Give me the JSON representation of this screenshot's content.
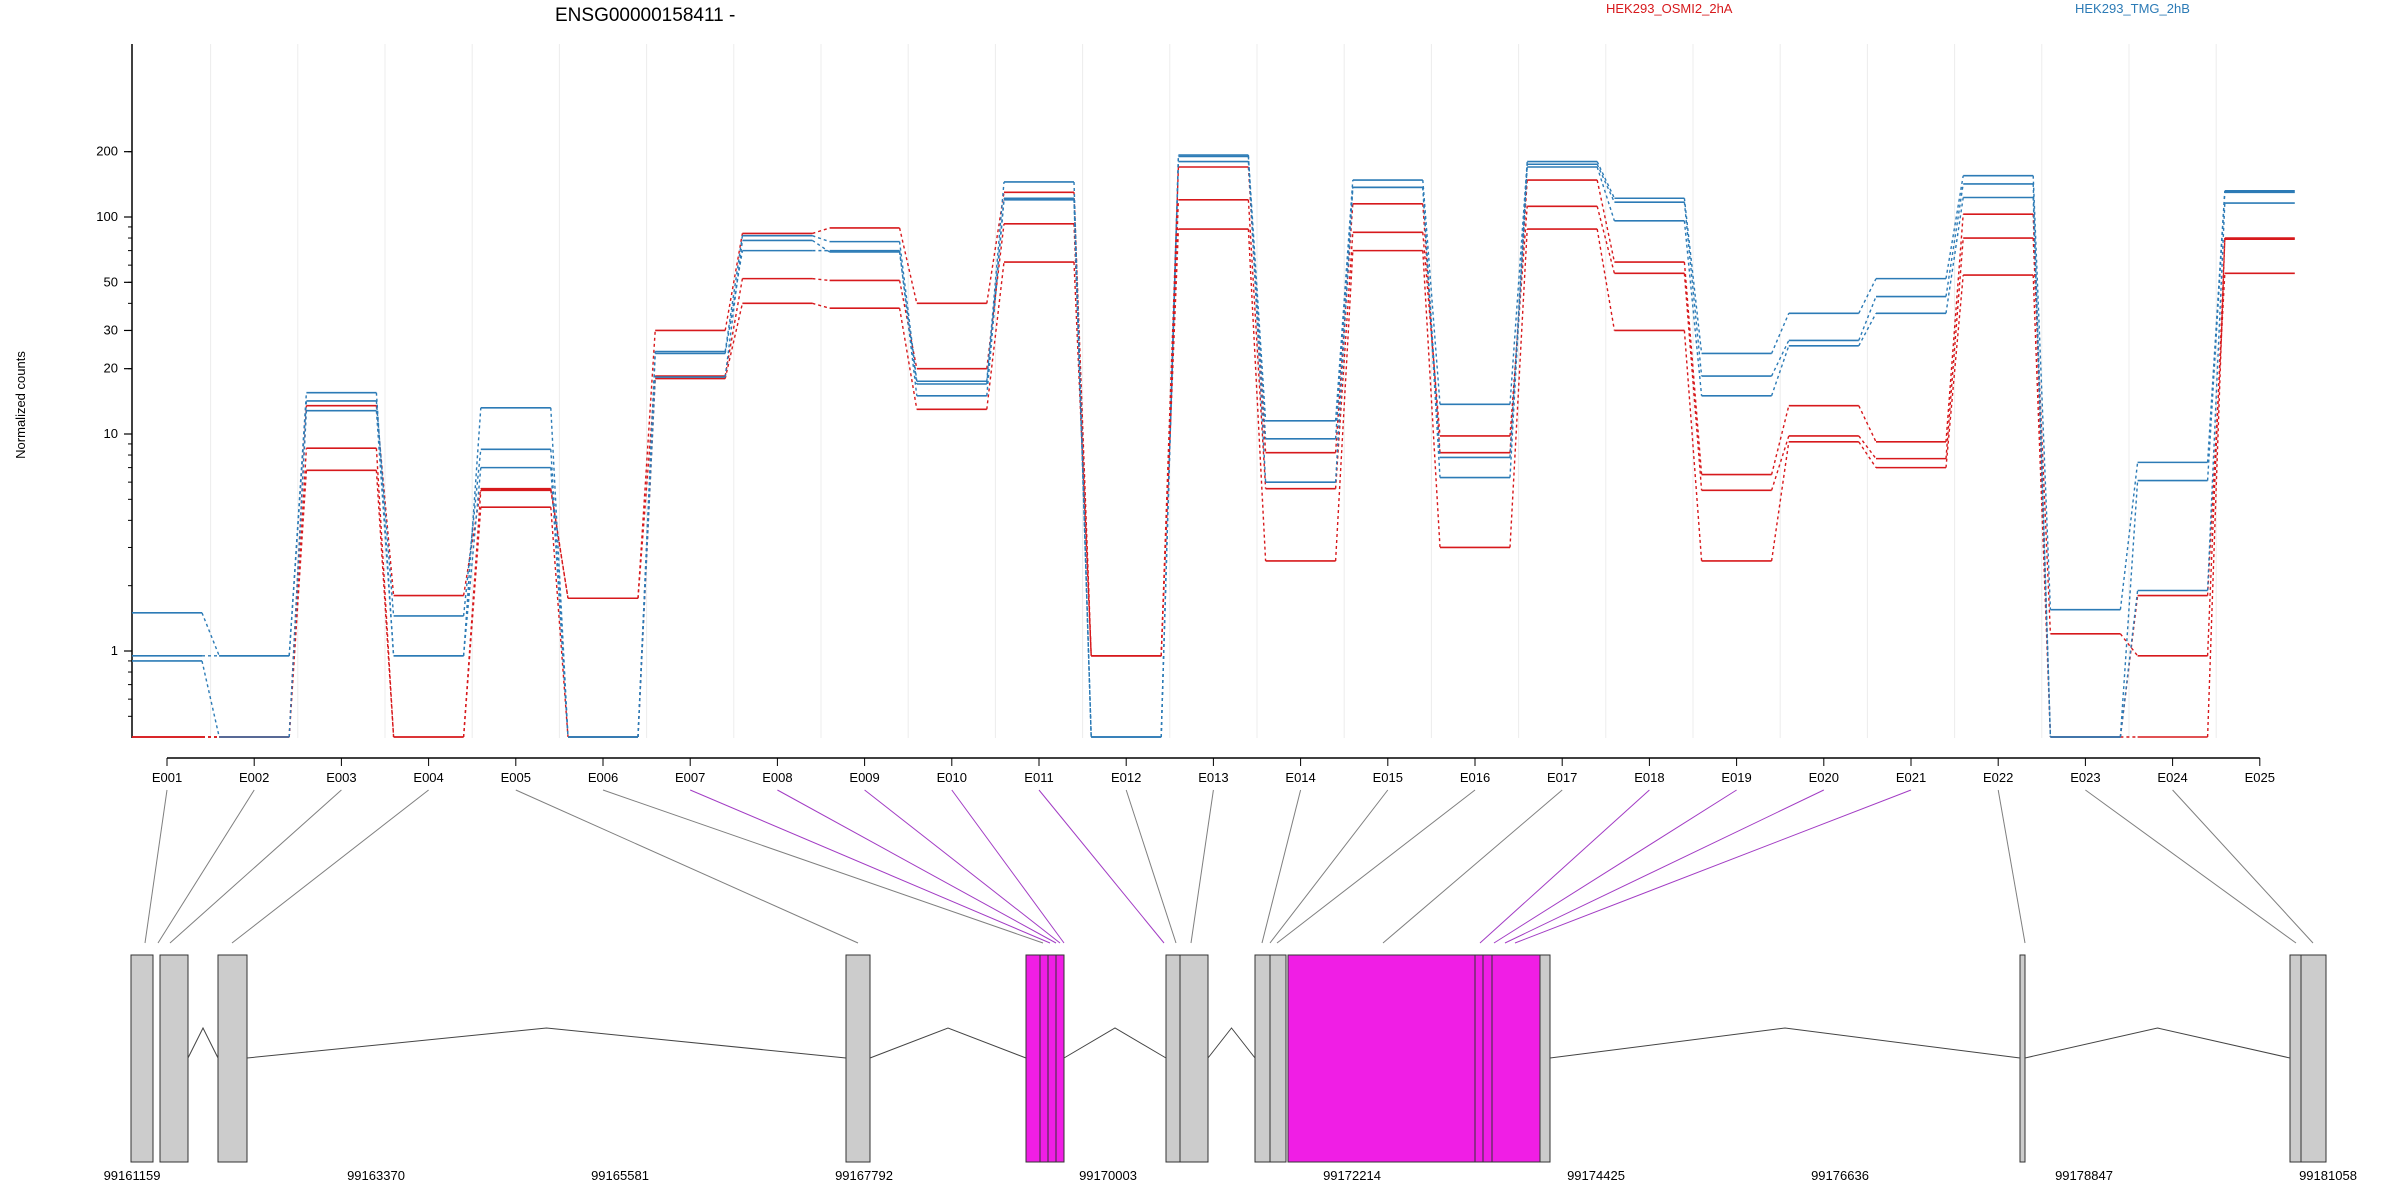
{
  "chart_data": {
    "type": "line",
    "title": "ENSG00000158411 -",
    "ylabel": "Normalized counts",
    "xlabel": "",
    "y_scale": "log",
    "ylim": [
      0.4,
      250
    ],
    "y_ticks": [
      1,
      10,
      20,
      30,
      50,
      100,
      200
    ],
    "categories": [
      "E001",
      "E002",
      "E003",
      "E004",
      "E005",
      "E006",
      "E007",
      "E008",
      "E009",
      "E010",
      "E011",
      "E012",
      "E013",
      "E014",
      "E015",
      "E016",
      "E017",
      "E018",
      "E019",
      "E020",
      "E021",
      "E022",
      "E023",
      "E024",
      "E025"
    ],
    "legend": [
      {
        "label": "HEK293_OSMI2_2hA",
        "color": "#d7191c"
      },
      {
        "label": "HEK293_TMG_2hB",
        "color": "#2c7bb6"
      }
    ],
    "legend_placement": "top",
    "grid": "vertical",
    "series": [
      {
        "group": 0,
        "values": [
          0.4,
          0.4,
          13.5,
          1.8,
          5.6,
          1.75,
          30,
          84,
          89,
          40,
          130,
          0.95,
          170,
          8.2,
          115,
          8.2,
          148,
          62,
          6.5,
          13.5,
          9.2,
          103,
          0.4,
          0.4,
          80
        ]
      },
      {
        "group": 0,
        "values": [
          0.4,
          0.4,
          8.6,
          0.4,
          5.5,
          1.75,
          18.5,
          52,
          51,
          20,
          93,
          0.95,
          120,
          5.6,
          85,
          9.8,
          112,
          55,
          5.5,
          9.8,
          7.7,
          80,
          1.2,
          0.95,
          79
        ]
      },
      {
        "group": 0,
        "values": [
          0.4,
          0.4,
          6.8,
          0.4,
          4.6,
          0.4,
          18,
          40,
          38,
          13,
          62,
          0.95,
          88,
          2.6,
          70,
          3.0,
          88,
          30,
          2.6,
          9.2,
          7.0,
          54,
          0.4,
          1.8,
          55
        ]
      },
      {
        "group": 1,
        "values": [
          1.5,
          0.95,
          15.5,
          0.95,
          13.2,
          0.4,
          24,
          82,
          77,
          17.5,
          145,
          0.4,
          190,
          11.5,
          148,
          13.7,
          180,
          122,
          23.5,
          36,
          52,
          155,
          1.55,
          7.4,
          132
        ]
      },
      {
        "group": 1,
        "values": [
          0.95,
          0.95,
          14.2,
          1.45,
          8.5,
          0.4,
          23.5,
          70,
          70,
          15,
          120,
          0.4,
          180,
          9.5,
          137,
          6.3,
          175,
          117,
          18.5,
          27,
          43,
          142,
          0.4,
          6.1,
          130
        ]
      },
      {
        "group": 1,
        "values": [
          0.9,
          0.4,
          12.8,
          0.95,
          7.0,
          0.4,
          18.3,
          78,
          69,
          17,
          122,
          0.4,
          193,
          6.0,
          137,
          7.8,
          170,
          96,
          15,
          25.5,
          36,
          123,
          0.4,
          1.9,
          116
        ]
      }
    ]
  },
  "gene_model": {
    "coordinates": [
      "99161159",
      "99163370",
      "99165581",
      "99167792",
      "99170003",
      "99172214",
      "99174425",
      "99176636",
      "99178847",
      "99181058"
    ]
  },
  "colors": {
    "group_a": "#d7191c",
    "group_b": "#2c7bb6",
    "exon": "#cccccc",
    "exon_highlight": "#f01ee5",
    "connector_plain": "#7f7f7f",
    "connector_highlight": "#a23cc4",
    "grid": "#ececec"
  }
}
